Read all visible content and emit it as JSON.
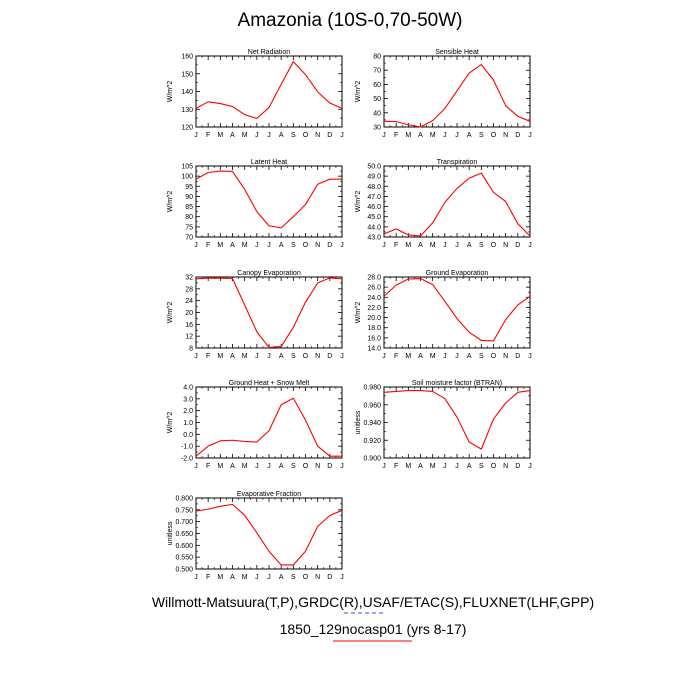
{
  "title": "Amazonia (10S-0,70-50W)",
  "footer": {
    "line1": "Willmott-Matsuura(T,P),GRDC(R),USAF/ETAC(S),FLUXNET(LHF,GPP)",
    "line2": "1850_129nocasp01 (yrs 8-17)"
  },
  "colors": {
    "series": "#ff0000",
    "axis": "#000000",
    "legend_dash": "#3355cc"
  },
  "chart_data": [
    {
      "type": "line",
      "title": "Net Radiation",
      "ylabel": "W/m^2",
      "ylim": [
        120,
        160
      ],
      "yticks": [
        "120",
        "130",
        "140",
        "150",
        "160"
      ],
      "x": [
        "J",
        "F",
        "M",
        "A",
        "M",
        "J",
        "J",
        "A",
        "S",
        "O",
        "N",
        "D",
        "J"
      ],
      "values": [
        130.5,
        134.2,
        133.2,
        131.5,
        127.0,
        124.8,
        131.0,
        144.0,
        156.8,
        149.5,
        139.8,
        133.5,
        130.5
      ]
    },
    {
      "type": "line",
      "title": "Sensible Heat",
      "ylabel": "W/m^2",
      "ylim": [
        30,
        80
      ],
      "yticks": [
        "30",
        "40",
        "50",
        "60",
        "70",
        "80"
      ],
      "x": [
        "J",
        "F",
        "M",
        "A",
        "M",
        "J",
        "J",
        "A",
        "S",
        "O",
        "N",
        "D",
        "J"
      ],
      "values": [
        34.0,
        33.8,
        31.6,
        30.0,
        34.5,
        43.0,
        55.5,
        68.0,
        74.0,
        63.0,
        45.0,
        37.5,
        34.0
      ]
    },
    {
      "type": "line",
      "title": "Latent Heat",
      "ylabel": "W/m^2",
      "ylim": [
        70,
        105
      ],
      "yticks": [
        "70",
        "75",
        "80",
        "85",
        "90",
        "95",
        "100",
        "105"
      ],
      "x": [
        "J",
        "F",
        "M",
        "A",
        "M",
        "J",
        "J",
        "A",
        "S",
        "O",
        "N",
        "D",
        "J"
      ],
      "values": [
        98.5,
        101.8,
        102.5,
        102.3,
        93.5,
        82.5,
        75.5,
        74.5,
        80.0,
        86.0,
        96.0,
        98.5,
        98.5
      ]
    },
    {
      "type": "line",
      "title": "Transpiration",
      "ylabel": "W/m^2",
      "ylim": [
        43.0,
        50.0
      ],
      "yticks": [
        "43.0",
        "44.0",
        "45.0",
        "46.0",
        "47.0",
        "48.0",
        "49.0",
        "50.0"
      ],
      "x": [
        "J",
        "F",
        "M",
        "A",
        "M",
        "J",
        "J",
        "A",
        "S",
        "O",
        "N",
        "D",
        "J"
      ],
      "values": [
        43.3,
        43.8,
        43.2,
        43.1,
        44.4,
        46.4,
        47.8,
        48.8,
        49.3,
        47.4,
        46.5,
        44.3,
        43.1
      ]
    },
    {
      "type": "line",
      "title": "Canopy Evaporation",
      "ylabel": "W/m^2",
      "ylim": [
        8,
        32
      ],
      "yticks": [
        "8",
        "12",
        "16",
        "20",
        "24",
        "28",
        "32"
      ],
      "x": [
        "J",
        "F",
        "M",
        "A",
        "M",
        "J",
        "J",
        "A",
        "S",
        "O",
        "N",
        "D",
        "J"
      ],
      "values": [
        31.4,
        31.6,
        31.6,
        31.5,
        22.5,
        13.5,
        8.2,
        8.5,
        15.0,
        23.5,
        30.0,
        31.7,
        31.4
      ]
    },
    {
      "type": "line",
      "title": "Ground Evaporation",
      "ylabel": "W/m^2",
      "ylim": [
        14.0,
        28.0
      ],
      "yticks": [
        "14.0",
        "16.0",
        "18.0",
        "20.0",
        "22.0",
        "24.0",
        "26.0",
        "28.0"
      ],
      "x": [
        "J",
        "F",
        "M",
        "A",
        "M",
        "J",
        "J",
        "A",
        "S",
        "O",
        "N",
        "D",
        "J"
      ],
      "values": [
        24.2,
        26.4,
        27.6,
        27.7,
        26.5,
        23.2,
        19.8,
        17.1,
        15.5,
        15.4,
        19.6,
        22.5,
        24.2
      ]
    },
    {
      "type": "line",
      "title": "Ground Heat + Snow Melt",
      "ylabel": "W/m^2",
      "ylim": [
        -2.0,
        4.0
      ],
      "yticks": [
        "-2.0",
        "-1.0",
        "0.0",
        "1.0",
        "2.0",
        "3.0",
        "4.0"
      ],
      "x": [
        "J",
        "F",
        "M",
        "A",
        "M",
        "J",
        "J",
        "A",
        "S",
        "O",
        "N",
        "D",
        "J"
      ],
      "values": [
        -1.85,
        -1.0,
        -0.55,
        -0.5,
        -0.6,
        -0.65,
        0.3,
        2.5,
        3.05,
        1.2,
        -1.0,
        -1.85,
        -1.85
      ]
    },
    {
      "type": "line",
      "title": "Soil moisture factor (BTRAN)",
      "ylabel": "unitless",
      "ylim": [
        0.9,
        0.98
      ],
      "yticks": [
        "0.900",
        "0.920",
        "0.940",
        "0.960",
        "0.980"
      ],
      "x": [
        "J",
        "F",
        "M",
        "A",
        "M",
        "J",
        "J",
        "A",
        "S",
        "O",
        "N",
        "D",
        "J"
      ],
      "values": [
        0.974,
        0.975,
        0.976,
        0.976,
        0.975,
        0.967,
        0.946,
        0.918,
        0.91,
        0.944,
        0.962,
        0.974,
        0.976
      ]
    },
    {
      "type": "line",
      "title": "Evaporative Fraction",
      "ylabel": "unitless",
      "ylim": [
        0.5,
        0.8
      ],
      "yticks": [
        "0.500",
        "0.550",
        "0.600",
        "0.650",
        "0.700",
        "0.750",
        "0.800"
      ],
      "x": [
        "J",
        "F",
        "M",
        "A",
        "M",
        "J",
        "J",
        "A",
        "S",
        "O",
        "N",
        "D",
        "J"
      ],
      "values": [
        0.745,
        0.753,
        0.765,
        0.773,
        0.727,
        0.653,
        0.575,
        0.517,
        0.517,
        0.575,
        0.68,
        0.726,
        0.748
      ]
    }
  ]
}
